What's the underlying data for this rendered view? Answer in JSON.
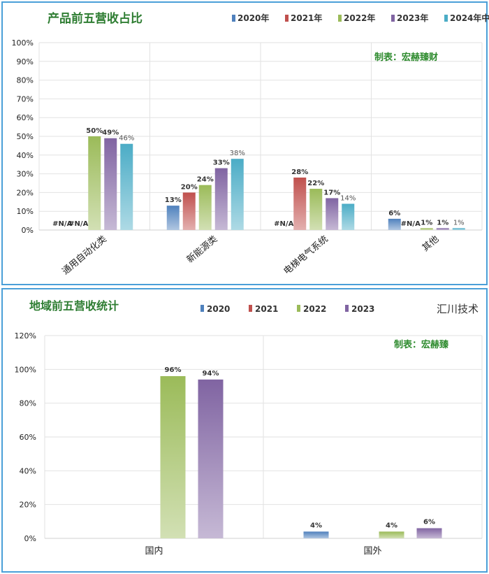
{
  "chart_data": [
    {
      "type": "bar",
      "title": "产品前五营收占比",
      "watermark": "制表：宏赫臻财",
      "categories": [
        "通用自动化类",
        "新能源类",
        "电梯电气系统",
        "其他"
      ],
      "ylim": [
        0,
        100
      ],
      "yticks": [
        "0%",
        "10%",
        "20%",
        "30%",
        "40%",
        "50%",
        "60%",
        "70%",
        "80%",
        "90%",
        "100%"
      ],
      "legend_position": "top-right",
      "grid": true,
      "series": [
        {
          "name": "2020年",
          "values": [
            null,
            13,
            null,
            6
          ],
          "labels": [
            "#N/A",
            "13%",
            "#N/A",
            "6%"
          ],
          "color": "#4f81bd"
        },
        {
          "name": "2021年",
          "values": [
            null,
            20,
            28,
            null
          ],
          "labels": [
            "#N/A",
            "20%",
            "28%",
            "#N/A"
          ],
          "color": "#c0504d"
        },
        {
          "name": "2022年",
          "values": [
            50,
            24,
            22,
            1
          ],
          "labels": [
            "50%",
            "24%",
            "22%",
            "1%"
          ],
          "color": "#9bbb59"
        },
        {
          "name": "2023年",
          "values": [
            49,
            33,
            17,
            1
          ],
          "labels": [
            "49%",
            "33%",
            "17%",
            "1%"
          ],
          "color": "#8064a2"
        },
        {
          "name": "2024年中",
          "values": [
            46,
            38,
            14,
            1
          ],
          "labels": [
            "46%",
            "38%",
            "14%",
            "1%"
          ],
          "color": "#4bacc6"
        }
      ]
    },
    {
      "type": "bar",
      "title": "地域前五营收统计",
      "watermark": "制表：宏赫臻",
      "brand": "汇川技术",
      "categories": [
        "国内",
        "国外"
      ],
      "ylim": [
        0,
        120
      ],
      "yticks": [
        "0%",
        "20%",
        "40%",
        "60%",
        "80%",
        "100%",
        "120%"
      ],
      "legend_position": "top",
      "grid": true,
      "series": [
        {
          "name": "2020",
          "values": [
            null,
            4
          ],
          "labels": [
            "",
            "4%"
          ],
          "color": "#4f81bd"
        },
        {
          "name": "2021",
          "values": [
            null,
            null
          ],
          "labels": [
            "",
            ""
          ],
          "color": "#c0504d"
        },
        {
          "name": "2022",
          "values": [
            96,
            4
          ],
          "labels": [
            "96%",
            "4%"
          ],
          "color": "#9bbb59"
        },
        {
          "name": "2023",
          "values": [
            94,
            6
          ],
          "labels": [
            "94%",
            "6%"
          ],
          "color": "#8064a2"
        }
      ]
    }
  ]
}
